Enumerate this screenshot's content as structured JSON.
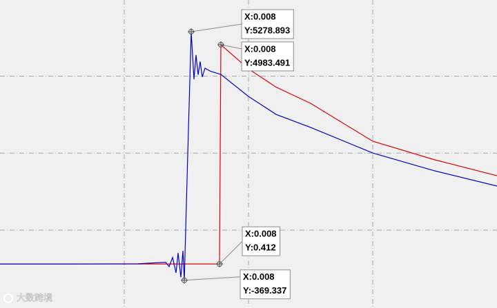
{
  "chart_data": {
    "type": "line",
    "xlim": [
      0.0062,
      0.0098
    ],
    "ylim": [
      -1000,
      6000
    ],
    "xticks": [
      0.0071,
      0.008,
      0.0089
    ],
    "yticks": [
      770,
      2520,
      4270
    ],
    "grid": true,
    "series": [
      {
        "color": "#0000c8",
        "x": [
          0.0062,
          0.0067,
          0.0072,
          0.0074,
          0.007425,
          0.00745,
          0.007475,
          0.00749,
          0.00751,
          0.007525,
          0.007535,
          0.00756,
          0.007585,
          0.007605,
          0.00762,
          0.007635,
          0.00765,
          0.007665,
          0.007685,
          0.007725,
          0.0078,
          0.008,
          0.0082,
          0.00845,
          0.0089,
          0.00935,
          0.0098
        ],
        "values": [
          0,
          0,
          5,
          40,
          -60,
          150,
          -200,
          250,
          -300,
          300,
          -369.337,
          2500,
          5278.893,
          4200,
          4750,
          4300,
          4600,
          4250,
          4450,
          4380,
          4308,
          3808,
          3400,
          3103,
          2523,
          2116,
          1772
        ]
      },
      {
        "color": "#dd0000",
        "x": [
          0.0062,
          0.0072,
          0.00779,
          0.0078,
          0.008,
          0.0082,
          0.00845,
          0.0089,
          0.00935,
          0.0098
        ],
        "values": [
          0,
          0,
          0.412,
          4983.491,
          4434,
          4020,
          3651,
          2790,
          2367,
          2007
        ]
      }
    ],
    "annotations": [
      {
        "x": {
          "value": 0.007585,
          "label": "X:0.008"
        },
        "y": {
          "value": 5278.893,
          "label": "Y:5278.893"
        }
      },
      {
        "x": {
          "value": 0.0078,
          "label": "X:0.008"
        },
        "y": {
          "value": 4983.491,
          "label": "Y:4983.491"
        }
      },
      {
        "x": {
          "value": 0.00779,
          "label": "X:0.008"
        },
        "y": {
          "value": 0.412,
          "label": "Y:0.412"
        }
      },
      {
        "x": {
          "value": 0.007535,
          "label": "X:0.008"
        },
        "y": {
          "value": -369.337,
          "label": "Y:-369.337"
        }
      }
    ],
    "watermark": "大数跨境"
  }
}
